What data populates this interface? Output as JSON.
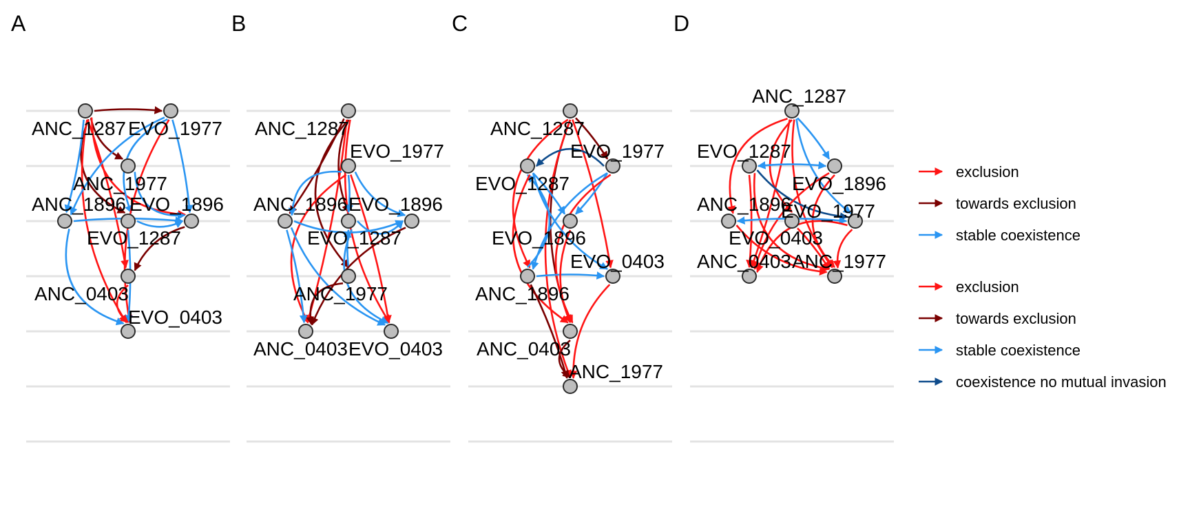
{
  "colors": {
    "exclusion": "#ff1414",
    "towards_exclusion": "#7a0000",
    "stable_coexistence": "#2a95f2",
    "coexistence_no_mutual_invasion": "#0f4c8c"
  },
  "panels": [
    {
      "letter": "A",
      "nodes": [
        {
          "id": "ANC_1287",
          "label": "ANC_1287"
        },
        {
          "id": "EVO_1977",
          "label": "EVO_1977"
        },
        {
          "id": "ANC_1977",
          "label": "ANC_1977"
        },
        {
          "id": "ANC_1896",
          "label": "ANC_1896"
        },
        {
          "id": "EVO_1896",
          "label": "EVO_1896"
        },
        {
          "id": "EVO_1287",
          "label": "EVO_1287"
        },
        {
          "id": "ANC_0403",
          "label": "ANC_0403"
        },
        {
          "id": "EVO_0403",
          "label": "EVO_0403"
        }
      ],
      "edges": [
        {
          "from": "ANC_1287",
          "to": "EVO_1977",
          "type": "towards_exclusion"
        },
        {
          "from": "ANC_1287",
          "to": "ANC_1977",
          "type": "towards_exclusion"
        },
        {
          "from": "ANC_1287",
          "to": "EVO_1896",
          "type": "towards_exclusion"
        },
        {
          "from": "ANC_1287",
          "to": "ANC_0403",
          "type": "exclusion"
        },
        {
          "from": "ANC_1287",
          "to": "EVO_0403",
          "type": "exclusion"
        },
        {
          "from": "ANC_1287",
          "to": "EVO_1287",
          "type": "exclusion"
        },
        {
          "from": "ANC_1287",
          "to": "ANC_1896",
          "type": "stable_coexistence"
        },
        {
          "from": "EVO_1977",
          "to": "ANC_1896",
          "type": "stable_coexistence"
        },
        {
          "from": "EVO_1977",
          "to": "EVO_1896",
          "type": "stable_coexistence"
        },
        {
          "from": "EVO_1977",
          "to": "EVO_1287",
          "type": "stable_coexistence"
        },
        {
          "from": "EVO_1977",
          "to": "EVO_0403",
          "type": "exclusion"
        },
        {
          "from": "ANC_1977",
          "to": "EVO_1287",
          "type": "stable_coexistence"
        },
        {
          "from": "ANC_1896",
          "to": "EVO_1287",
          "type": "stable_coexistence"
        },
        {
          "from": "EVO_1896",
          "to": "EVO_1287",
          "type": "stable_coexistence"
        },
        {
          "from": "ANC_1896",
          "to": "EVO_0403",
          "type": "stable_coexistence"
        },
        {
          "from": "EVO_1896",
          "to": "EVO_0403",
          "type": "stable_coexistence"
        },
        {
          "from": "EVO_1287",
          "to": "ANC_0403",
          "type": "towards_exclusion"
        },
        {
          "from": "ANC_0403",
          "to": "EVO_0403",
          "type": "exclusion"
        }
      ]
    },
    {
      "letter": "B",
      "nodes": [
        {
          "id": "ANC_1287",
          "label": "ANC_1287"
        },
        {
          "id": "EVO_1977",
          "label": "EVO_1977"
        },
        {
          "id": "ANC_1896",
          "label": "ANC_1896"
        },
        {
          "id": "EVO_1896",
          "label": "EVO_1896"
        },
        {
          "id": "EVO_1287",
          "label": "EVO_1287"
        },
        {
          "id": "ANC_1977",
          "label": "ANC_1977"
        },
        {
          "id": "ANC_0403",
          "label": "ANC_0403"
        },
        {
          "id": "EVO_0403",
          "label": "EVO_0403"
        }
      ],
      "edges": [
        {
          "from": "ANC_1287",
          "to": "ANC_1896",
          "type": "towards_exclusion"
        },
        {
          "from": "ANC_1287",
          "to": "EVO_1896",
          "type": "towards_exclusion"
        },
        {
          "from": "ANC_1287",
          "to": "ANC_1977",
          "type": "towards_exclusion"
        },
        {
          "from": "ANC_1287",
          "to": "ANC_0403",
          "type": "exclusion"
        },
        {
          "from": "ANC_1287",
          "to": "EVO_0403",
          "type": "exclusion"
        },
        {
          "from": "EVO_1977",
          "to": "ANC_1896",
          "type": "stable_coexistence"
        },
        {
          "from": "EVO_1977",
          "to": "EVO_1896",
          "type": "stable_coexistence"
        },
        {
          "from": "EVO_1977",
          "to": "EVO_1287",
          "type": "stable_coexistence"
        },
        {
          "from": "EVO_1977",
          "to": "ANC_0403",
          "type": "exclusion"
        },
        {
          "from": "EVO_1977",
          "to": "EVO_0403",
          "type": "exclusion"
        },
        {
          "from": "ANC_1896",
          "to": "EVO_1287",
          "type": "stable_coexistence"
        },
        {
          "from": "EVO_1896",
          "to": "EVO_1287",
          "type": "stable_coexistence"
        },
        {
          "from": "ANC_1896",
          "to": "ANC_0403",
          "type": "stable_coexistence"
        },
        {
          "from": "ANC_1896",
          "to": "EVO_0403",
          "type": "stable_coexistence"
        },
        {
          "from": "EVO_1896",
          "to": "EVO_0403",
          "type": "stable_coexistence"
        },
        {
          "from": "ANC_1977",
          "to": "EVO_1896",
          "type": "stable_coexistence"
        },
        {
          "from": "EVO_1287",
          "to": "ANC_0403",
          "type": "towards_exclusion"
        },
        {
          "from": "ANC_1977",
          "to": "ANC_0403",
          "type": "towards_exclusion"
        }
      ]
    },
    {
      "letter": "C",
      "nodes": [
        {
          "id": "ANC_1287",
          "label": "ANC_1287"
        },
        {
          "id": "EVO_1977",
          "label": "EVO_1977"
        },
        {
          "id": "EVO_1287",
          "label": "EVO_1287"
        },
        {
          "id": "EVO_1896",
          "label": "EVO_1896"
        },
        {
          "id": "EVO_0403",
          "label": "EVO_0403"
        },
        {
          "id": "ANC_1896",
          "label": "ANC_1896"
        },
        {
          "id": "ANC_0403",
          "label": "ANC_0403"
        },
        {
          "id": "ANC_1977",
          "label": "ANC_1977"
        }
      ],
      "edges": [
        {
          "from": "ANC_1287",
          "to": "EVO_1977",
          "type": "towards_exclusion"
        },
        {
          "from": "ANC_1287",
          "to": "ANC_0403",
          "type": "towards_exclusion"
        },
        {
          "from": "ANC_1287",
          "to": "ANC_1896",
          "type": "exclusion"
        },
        {
          "from": "ANC_1287",
          "to": "EVO_0403",
          "type": "exclusion"
        },
        {
          "from": "ANC_1287",
          "to": "ANC_1977",
          "type": "exclusion"
        },
        {
          "from": "EVO_1977",
          "to": "EVO_1287",
          "type": "coexistence_no_mutual_invasion"
        },
        {
          "from": "EVO_1977",
          "to": "EVO_1896",
          "type": "stable_coexistence"
        },
        {
          "from": "EVO_1977",
          "to": "ANC_1896",
          "type": "stable_coexistence"
        },
        {
          "from": "EVO_1977",
          "to": "ANC_0403",
          "type": "exclusion"
        },
        {
          "from": "EVO_1287",
          "to": "EVO_1896",
          "type": "stable_coexistence"
        },
        {
          "from": "EVO_1287",
          "to": "EVO_0403",
          "type": "stable_coexistence"
        },
        {
          "from": "ANC_1896",
          "to": "EVO_1287",
          "type": "stable_coexistence"
        },
        {
          "from": "ANC_1896",
          "to": "EVO_0403",
          "type": "stable_coexistence"
        },
        {
          "from": "EVO_1896",
          "to": "ANC_0403",
          "type": "exclusion"
        },
        {
          "from": "EVO_1287",
          "to": "ANC_0403",
          "type": "exclusion"
        },
        {
          "from": "ANC_1896",
          "to": "ANC_1977",
          "type": "towards_exclusion"
        },
        {
          "from": "EVO_0403",
          "to": "ANC_1977",
          "type": "exclusion"
        },
        {
          "from": "ANC_0403",
          "to": "ANC_1977",
          "type": "towards_exclusion"
        }
      ]
    },
    {
      "letter": "D",
      "nodes": [
        {
          "id": "ANC_1287",
          "label": "ANC_1287"
        },
        {
          "id": "EVO_1287",
          "label": "EVO_1287"
        },
        {
          "id": "EVO_1896",
          "label": "EVO_1896"
        },
        {
          "id": "ANC_1896",
          "label": "ANC_1896"
        },
        {
          "id": "EVO_0403",
          "label": "EVO_0403"
        },
        {
          "id": "EVO_1977",
          "label": "EVO_1977"
        },
        {
          "id": "ANC_0403",
          "label": "ANC_0403"
        },
        {
          "id": "ANC_1977",
          "label": "ANC_1977"
        }
      ],
      "edges": [
        {
          "from": "ANC_1287",
          "to": "EVO_1896",
          "type": "stable_coexistence"
        },
        {
          "from": "ANC_1287",
          "to": "EVO_1977",
          "type": "stable_coexistence"
        },
        {
          "from": "ANC_1287",
          "to": "ANC_1896",
          "type": "exclusion"
        },
        {
          "from": "ANC_1287",
          "to": "ANC_0403",
          "type": "exclusion"
        },
        {
          "from": "ANC_1287",
          "to": "ANC_1977",
          "type": "exclusion"
        },
        {
          "from": "ANC_1287",
          "to": "EVO_0403",
          "type": "exclusion"
        },
        {
          "from": "EVO_1287",
          "to": "EVO_1896",
          "type": "stable_coexistence",
          "both": true
        },
        {
          "from": "EVO_1287",
          "to": "EVO_1977",
          "type": "coexistence_no_mutual_invasion"
        },
        {
          "from": "EVO_1287",
          "to": "ANC_1977",
          "type": "exclusion"
        },
        {
          "from": "EVO_1287",
          "to": "ANC_0403",
          "type": "exclusion"
        },
        {
          "from": "EVO_1896",
          "to": "ANC_0403",
          "type": "exclusion"
        },
        {
          "from": "EVO_1896",
          "to": "ANC_1977",
          "type": "exclusion"
        },
        {
          "from": "ANC_1896",
          "to": "EVO_1977",
          "type": "stable_coexistence",
          "both": true
        },
        {
          "from": "ANC_1896",
          "to": "ANC_1977",
          "type": "exclusion"
        },
        {
          "from": "EVO_1977",
          "to": "ANC_0403",
          "type": "exclusion"
        },
        {
          "from": "EVO_0403",
          "to": "ANC_1977",
          "type": "exclusion"
        },
        {
          "from": "EVO_1977",
          "to": "ANC_1977",
          "type": "exclusion"
        }
      ]
    }
  ],
  "legend_groups": [
    [
      {
        "type": "exclusion",
        "label": "exclusion"
      },
      {
        "type": "towards_exclusion",
        "label": "towards exclusion"
      },
      {
        "type": "stable_coexistence",
        "label": "stable coexistence"
      }
    ],
    [
      {
        "type": "exclusion",
        "label": "exclusion"
      },
      {
        "type": "towards_exclusion",
        "label": "towards exclusion"
      },
      {
        "type": "stable_coexistence",
        "label": "stable coexistence"
      },
      {
        "type": "coexistence_no_mutual_invasion",
        "label": "coexistence no mutual invasion"
      }
    ]
  ]
}
